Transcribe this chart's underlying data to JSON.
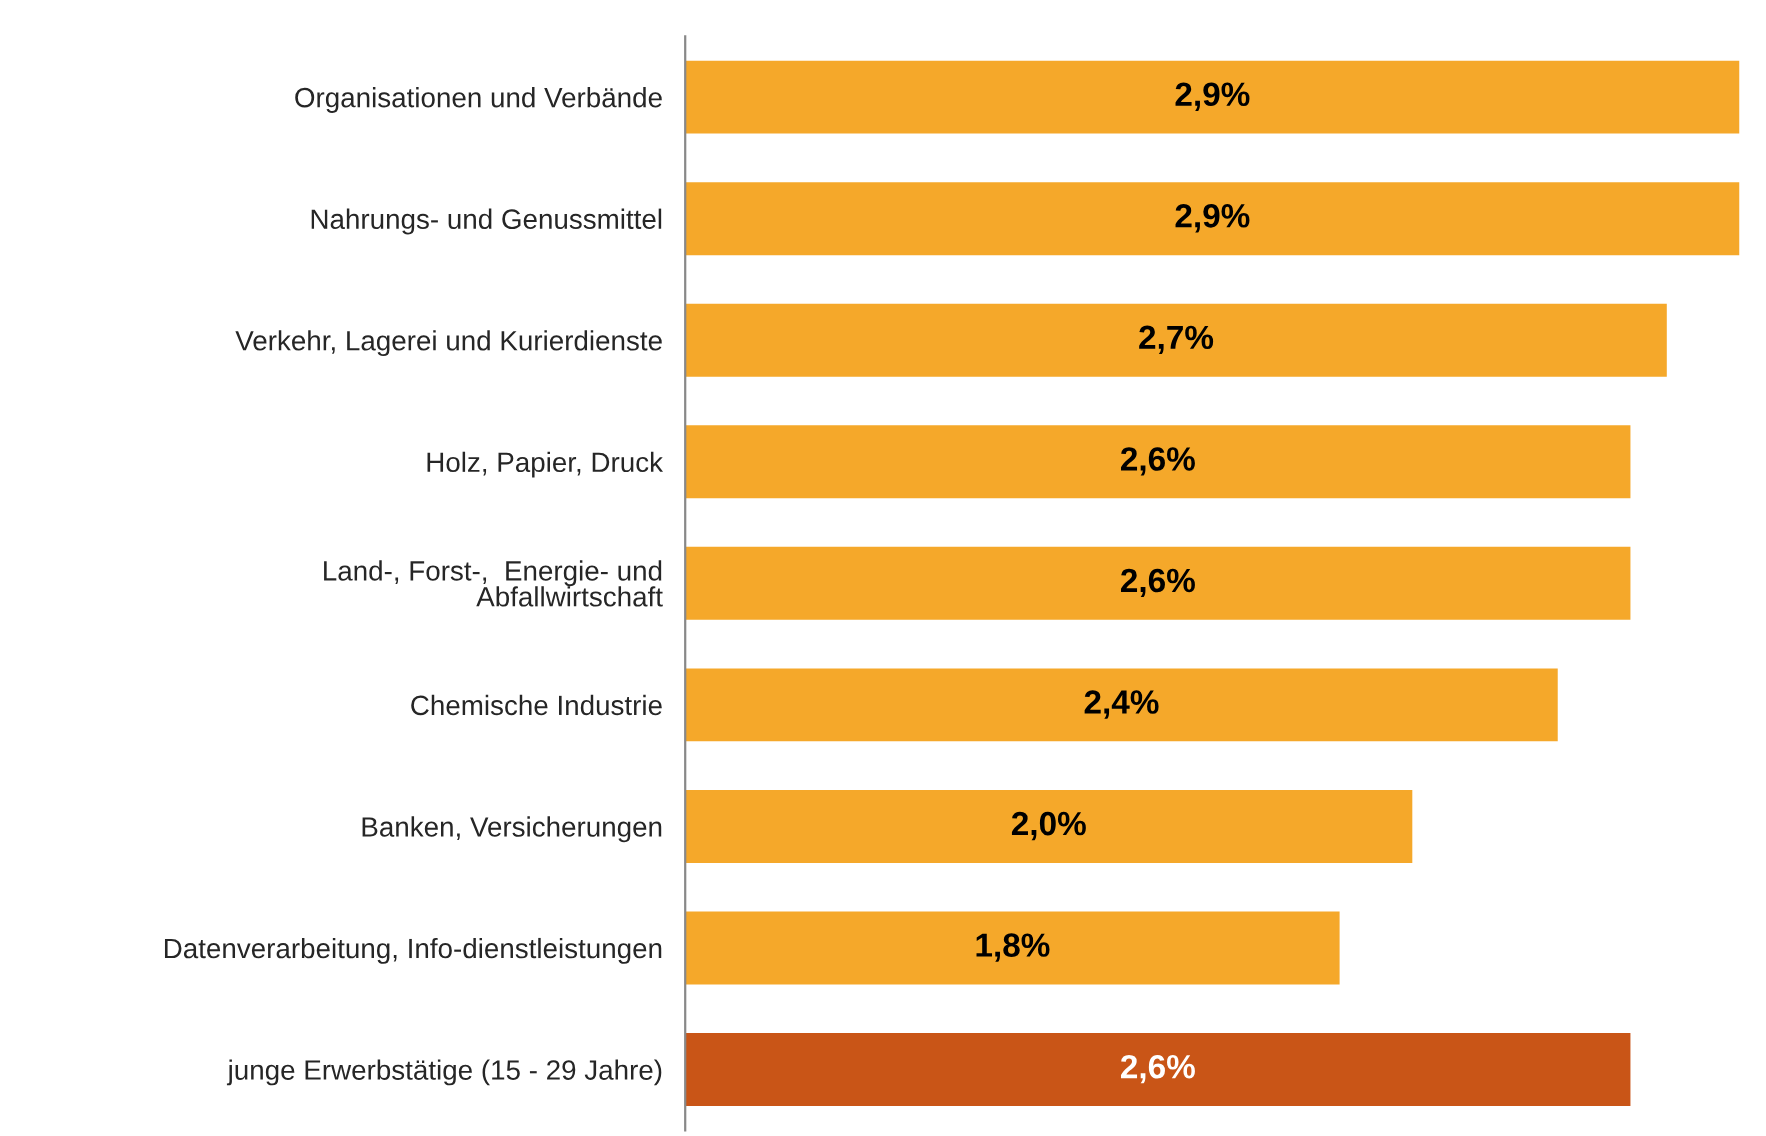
{
  "chart_data": {
    "type": "bar",
    "orientation": "horizontal",
    "categories": [
      "Organisationen und Verbände",
      "Nahrungs- und Genussmittel",
      "Verkehr, Lagerei und Kurierdienste",
      "Holz, Papier, Druck",
      "Land-, Forst-,  Energie- und\nAbfallwirtschaft",
      "Chemische Industrie",
      "Banken, Versicherungen",
      "Datenverarbeitung, Info-dienstleistungen",
      "junge Erwerbstätige (15 - 29 Jahre)"
    ],
    "values": [
      2.9,
      2.9,
      2.7,
      2.6,
      2.6,
      2.4,
      2.0,
      1.8,
      2.6
    ],
    "value_labels": [
      "2,9%",
      "2,9%",
      "2,7%",
      "2,6%",
      "2,6%",
      "2,4%",
      "2,0%",
      "1,8%",
      "2,6%"
    ],
    "colors": [
      "#f5a82a",
      "#f5a82a",
      "#f5a82a",
      "#f5a82a",
      "#f5a82a",
      "#f5a82a",
      "#f5a82a",
      "#f5a82a",
      "#c95517"
    ],
    "grid": false,
    "legend": false
  }
}
